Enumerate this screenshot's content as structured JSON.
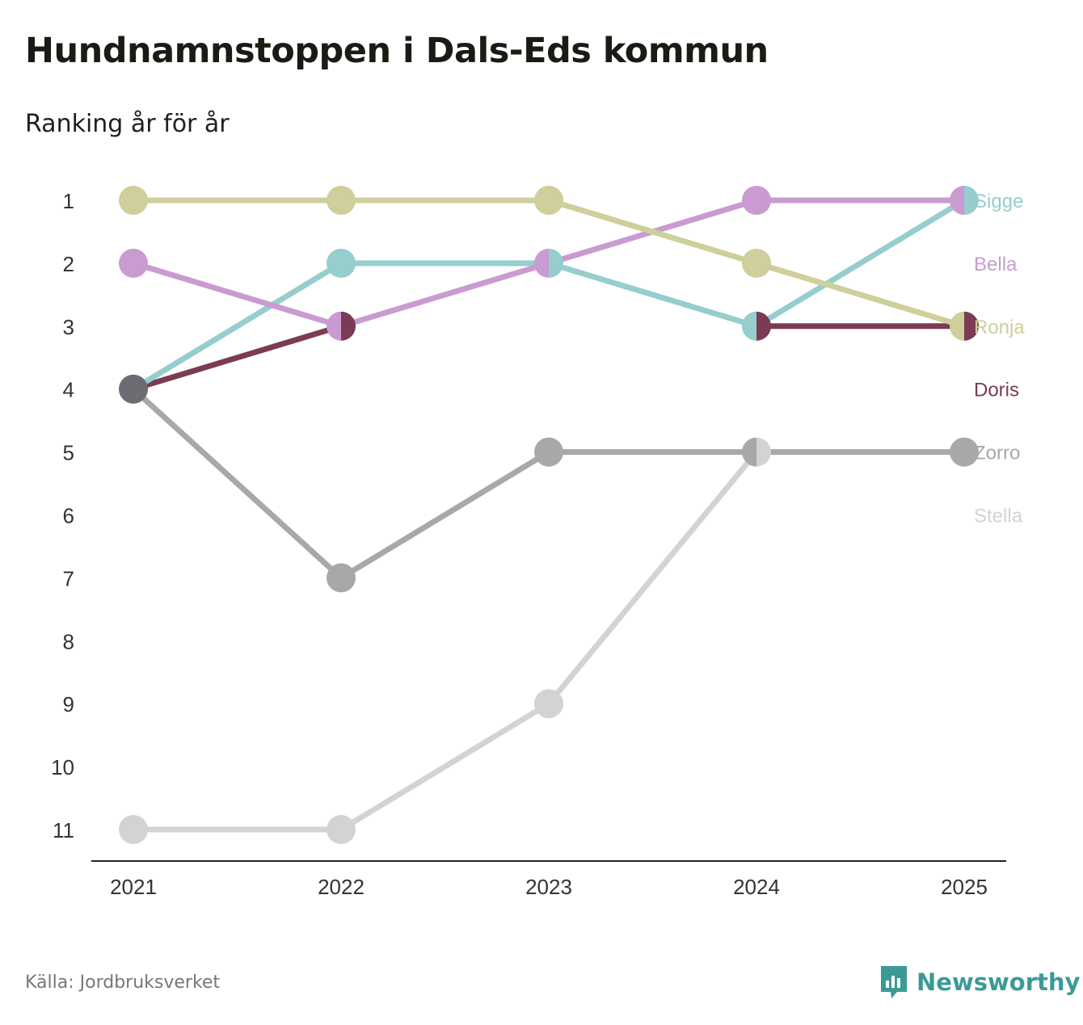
{
  "title": "Hundnamnstoppen i Dals-Eds kommun",
  "subtitle": "Ranking år för år",
  "source": "Källa: Jordbruksverket",
  "brand": {
    "name": "Newsworthy",
    "icon": "newsworthy-logo-icon",
    "color": "#3c9a96"
  },
  "chart_data": {
    "type": "line",
    "title": "Hundnamnstoppen i Dals-Eds kommun",
    "subtitle": "Ranking år för år",
    "xlabel": "",
    "ylabel": "",
    "x": [
      "2021",
      "2022",
      "2023",
      "2024",
      "2025"
    ],
    "yticks": [
      "1",
      "2",
      "3",
      "4",
      "5",
      "6",
      "7",
      "8",
      "9",
      "10",
      "11"
    ],
    "ylim": [
      1,
      11
    ],
    "y_inverted": true,
    "grid": false,
    "legend": "right-end labels",
    "series": [
      {
        "name": "Stella",
        "color": "#d3d3d3",
        "values": [
          11,
          11,
          9,
          5,
          null
        ]
      },
      {
        "name": "Zorro",
        "color": "#a8a8a8",
        "values": [
          4,
          7,
          5,
          5,
          5
        ]
      },
      {
        "name": "Doris",
        "color": "#7b3b52",
        "values": [
          4,
          3,
          null,
          3,
          3
        ]
      },
      {
        "name": "Sigge",
        "color": "#96cdcd",
        "values": [
          4,
          2,
          2,
          3,
          1
        ]
      },
      {
        "name": "Bella",
        "color": "#c99bd0",
        "values": [
          2,
          3,
          2,
          1,
          1
        ]
      },
      {
        "name": "Ronja",
        "color": "#cecf9b",
        "values": [
          1,
          1,
          1,
          2,
          3
        ]
      }
    ],
    "label_order": [
      "Sigge",
      "Bella",
      "Ronja",
      "Doris",
      "Zorro",
      "Stella"
    ],
    "overlap_color": "#6c6c72"
  }
}
